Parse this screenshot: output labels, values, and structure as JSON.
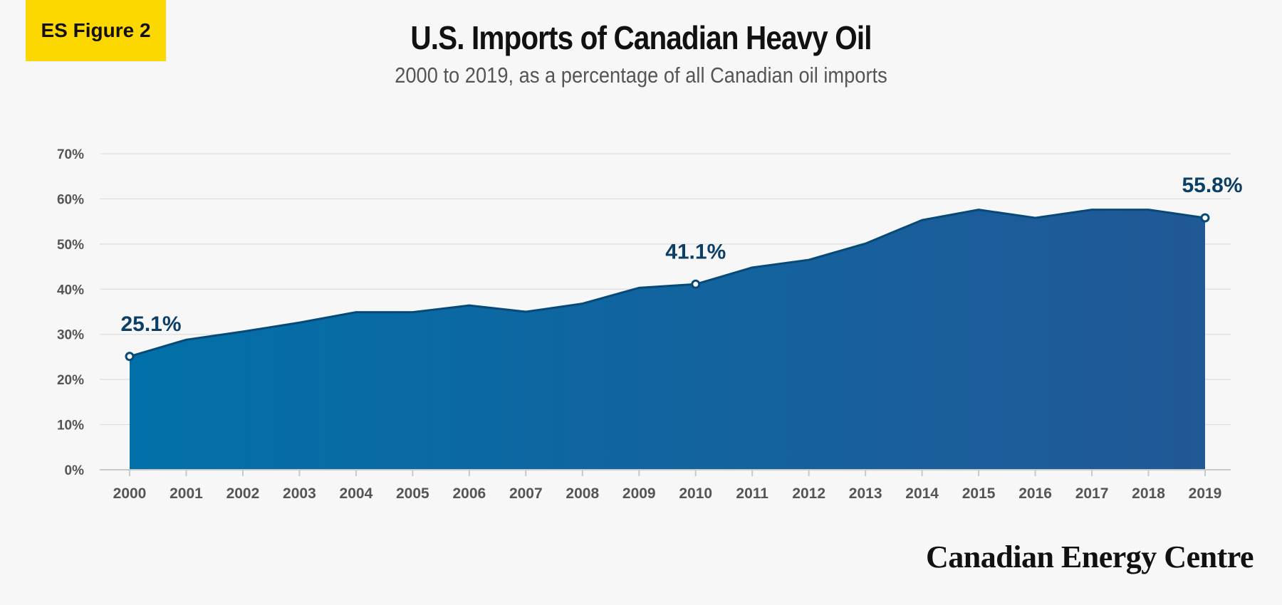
{
  "badge": "ES Figure 2",
  "brand": "Canadian Energy Centre",
  "colors": {
    "area_start": "#0270a8",
    "area_end": "#215896",
    "line": "#074a78",
    "label": "#0b3f66",
    "badge": "#fdd800",
    "grid": "#dedede",
    "axis_text": "#555555"
  },
  "chart_data": {
    "type": "area",
    "title": "U.S. Imports of Canadian Heavy Oil",
    "subtitle": "2000 to 2019, as a percentage of all Canadian oil imports",
    "xlabel": "",
    "ylabel": "",
    "x": [
      "2000",
      "2001",
      "2002",
      "2003",
      "2004",
      "2005",
      "2006",
      "2007",
      "2008",
      "2009",
      "2010",
      "2011",
      "2012",
      "2013",
      "2014",
      "2015",
      "2016",
      "2017",
      "2018",
      "2019"
    ],
    "values": [
      25.1,
      28.8,
      30.6,
      32.6,
      34.9,
      34.9,
      36.4,
      35.0,
      36.8,
      40.3,
      41.1,
      44.8,
      46.5,
      50.1,
      55.3,
      57.6,
      55.8,
      57.6,
      57.6,
      55.8
    ],
    "ylim": [
      0,
      70
    ],
    "yticks": [
      "0%",
      "10%",
      "20%",
      "30%",
      "40%",
      "50%",
      "60%",
      "70%"
    ],
    "grid": true,
    "legend": "none",
    "annotations": [
      {
        "index": 0,
        "text": "25.1%"
      },
      {
        "index": 10,
        "text": "41.1%"
      },
      {
        "index": 19,
        "text": "55.8%"
      }
    ]
  }
}
